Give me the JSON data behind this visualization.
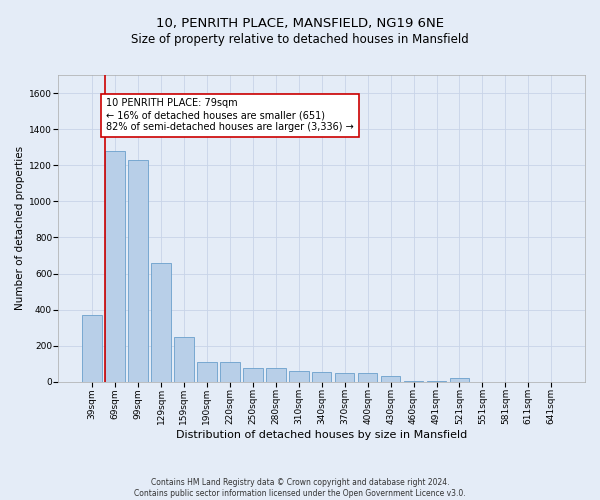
{
  "title": "10, PENRITH PLACE, MANSFIELD, NG19 6NE",
  "subtitle": "Size of property relative to detached houses in Mansfield",
  "xlabel": "Distribution of detached houses by size in Mansfield",
  "ylabel": "Number of detached properties",
  "categories": [
    "39sqm",
    "69sqm",
    "99sqm",
    "129sqm",
    "159sqm",
    "190sqm",
    "220sqm",
    "250sqm",
    "280sqm",
    "310sqm",
    "340sqm",
    "370sqm",
    "400sqm",
    "430sqm",
    "460sqm",
    "491sqm",
    "521sqm",
    "551sqm",
    "581sqm",
    "611sqm",
    "641sqm"
  ],
  "values": [
    370,
    1280,
    1230,
    660,
    250,
    110,
    110,
    75,
    75,
    60,
    55,
    50,
    50,
    30,
    5,
    5,
    20,
    0,
    0,
    0,
    0
  ],
  "bar_color": "#b8cfe8",
  "bar_edge_color": "#6aa0cc",
  "annotation_text": "10 PENRITH PLACE: 79sqm\n← 16% of detached houses are smaller (651)\n82% of semi-detached houses are larger (3,336) →",
  "annotation_box_color": "#ffffff",
  "annotation_box_edge_color": "#cc0000",
  "ylim": [
    0,
    1700
  ],
  "yticks": [
    0,
    200,
    400,
    600,
    800,
    1000,
    1200,
    1400,
    1600
  ],
  "grid_color": "#c8d4e8",
  "background_color": "#e4ecf7",
  "footer_text": "Contains HM Land Registry data © Crown copyright and database right 2024.\nContains public sector information licensed under the Open Government Licence v3.0.",
  "title_fontsize": 9.5,
  "subtitle_fontsize": 8.5,
  "xlabel_fontsize": 8,
  "ylabel_fontsize": 7.5,
  "tick_fontsize": 6.5,
  "annotation_fontsize": 7,
  "footer_fontsize": 5.5
}
